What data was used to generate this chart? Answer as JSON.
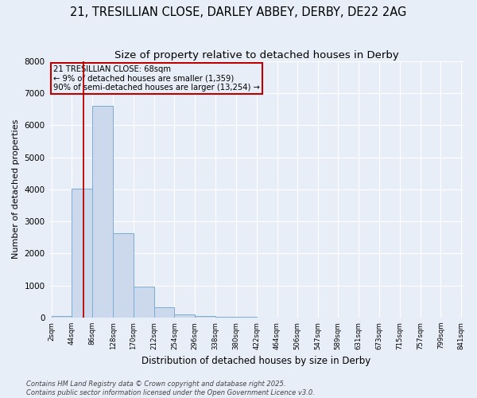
{
  "title1": "21, TRESILLIAN CLOSE, DARLEY ABBEY, DERBY, DE22 2AG",
  "title2": "Size of property relative to detached houses in Derby",
  "xlabel": "Distribution of detached houses by size in Derby",
  "ylabel": "Number of detached properties",
  "bin_edges": [
    2,
    44,
    86,
    128,
    170,
    212,
    254,
    296,
    338,
    380,
    422,
    464,
    506,
    547,
    589,
    631,
    673,
    715,
    757,
    799,
    841
  ],
  "bar_heights": [
    50,
    4020,
    6600,
    2620,
    970,
    310,
    105,
    55,
    30,
    15,
    8,
    4,
    3,
    2,
    1,
    1,
    1,
    1,
    0,
    0
  ],
  "bar_color": "#ccd9ec",
  "bar_edge_color": "#7aacd4",
  "red_line_x": 68,
  "annotation_title": "21 TRESILLIAN CLOSE: 68sqm",
  "annotation_line1": "← 9% of detached houses are smaller (1,359)",
  "annotation_line2": "90% of semi-detached houses are larger (13,254) →",
  "annotation_box_color": "#bb0000",
  "footer1": "Contains HM Land Registry data © Crown copyright and database right 2025.",
  "footer2": "Contains public sector information licensed under the Open Government Licence v3.0.",
  "ylim": [
    0,
    8000
  ],
  "yticks": [
    0,
    1000,
    2000,
    3000,
    4000,
    5000,
    6000,
    7000,
    8000
  ],
  "background_color": "#e8eef8",
  "grid_color": "#ffffff",
  "title_fontsize": 10.5,
  "subtitle_fontsize": 9.5
}
